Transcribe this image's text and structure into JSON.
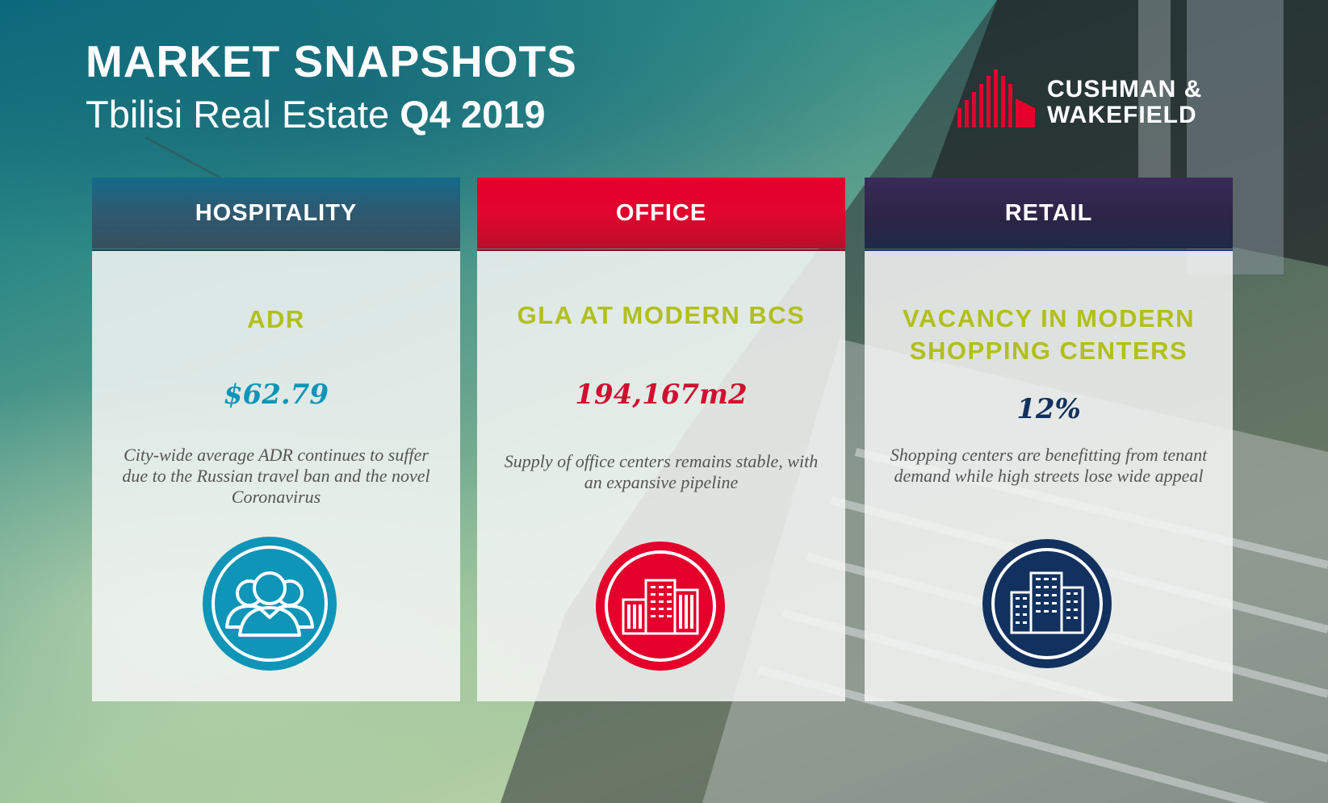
{
  "header": {
    "title": "MARKET SNAPSHOTS",
    "subtitle_prefix": "Tbilisi Real Estate",
    "subtitle_period": "Q4 2019"
  },
  "logo": {
    "line1": "CUSHMAN &",
    "line2": "WAKEFIELD",
    "color": "#e4002b"
  },
  "cards": [
    {
      "heading": "HOSPITALITY",
      "metric": "ADR",
      "value": "$62.79",
      "description": "City-wide average ADR continues to suffer due to the Russian travel ban and the novel Coronavirus",
      "icon": "people-group-icon",
      "accent": "#0f95b8"
    },
    {
      "heading": "OFFICE",
      "metric": "GLA AT MODERN BCS",
      "value": "194,167m2",
      "description": "Supply of office centers remains stable, with an expansive pipeline",
      "icon": "office-buildings-icon",
      "accent": "#e4002b"
    },
    {
      "heading": "RETAIL",
      "metric_line1": "VACANCY IN MODERN",
      "metric_line2": "SHOPPING CENTERS",
      "value": "12%",
      "description": "Shopping centers are benefitting from tenant demand while high streets lose wide appeal",
      "icon": "city-buildings-icon",
      "accent": "#12315e"
    }
  ]
}
